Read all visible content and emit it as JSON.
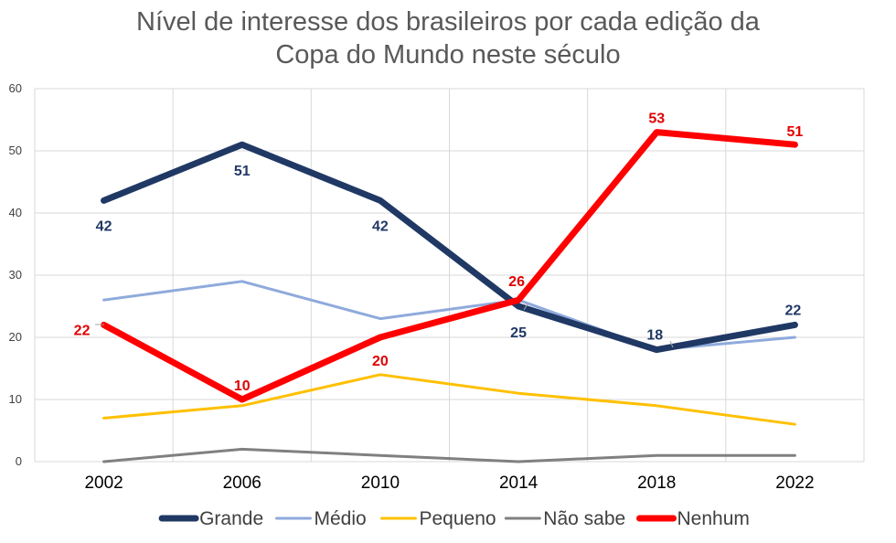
{
  "title": {
    "line1": "Nível de interesse dos brasileiros por cada edição da",
    "line2": "Copa do Mundo neste século"
  },
  "chart_data": {
    "type": "line",
    "title": "Nível de interesse dos brasileiros por cada edição da Copa do Mundo neste século",
    "xlabel": "",
    "ylabel": "",
    "categories": [
      "2002",
      "2006",
      "2010",
      "2014",
      "2018",
      "2022"
    ],
    "ylim": [
      0,
      60
    ],
    "yticks": [
      0,
      10,
      20,
      30,
      40,
      50,
      60
    ],
    "grid": true,
    "legend_position": "bottom",
    "series": [
      {
        "name": "Grande",
        "color": "#203864",
        "values": [
          42,
          51,
          42,
          25,
          18,
          22
        ],
        "labels_shown": true,
        "label_color": "#203864"
      },
      {
        "name": "Médio",
        "color": "#8FAADC",
        "values": [
          26,
          29,
          23,
          26,
          18,
          20
        ],
        "labels_shown": false
      },
      {
        "name": "Pequeno",
        "color": "#FFC000",
        "values": [
          7,
          9,
          14,
          11,
          9,
          6
        ],
        "labels_shown": false
      },
      {
        "name": "Não sabe",
        "color": "#808080",
        "values": [
          0,
          2,
          1,
          0,
          1,
          1
        ],
        "labels_shown": false
      },
      {
        "name": "Nenhum",
        "color": "#FF0000",
        "values": [
          22,
          10,
          20,
          26,
          53,
          51
        ],
        "labels_shown": true,
        "label_color": "#E00000"
      }
    ]
  }
}
